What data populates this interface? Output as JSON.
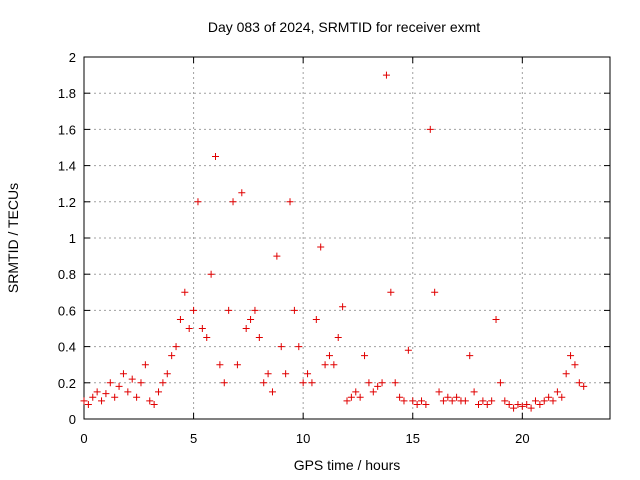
{
  "chart_data": {
    "type": "scatter",
    "title": "Day 083 of 2024, SRMTID for receiver exmt",
    "xlabel": "GPS time / hours",
    "ylabel": "SRMTID / TECUs",
    "xlim": [
      0,
      24
    ],
    "ylim": [
      0,
      2
    ],
    "xticks": [
      0,
      5,
      10,
      15,
      20
    ],
    "xtick_labels": [
      "0",
      "5",
      "10",
      "15",
      "20"
    ],
    "yticks": [
      0,
      0.2,
      0.4,
      0.6,
      0.8,
      1,
      1.2,
      1.4,
      1.6,
      1.8,
      2
    ],
    "ytick_labels": [
      "0",
      "0.2",
      "0.4",
      "0.6",
      "0.8",
      "1",
      "1.2",
      "1.4",
      "1.6",
      "1.8",
      "2"
    ],
    "grid": true,
    "marker": "+",
    "marker_color": "#e00000",
    "series": [
      {
        "name": "SRMTID",
        "x": [
          0.0,
          0.2,
          0.4,
          0.6,
          0.8,
          1.0,
          1.2,
          1.4,
          1.6,
          1.8,
          2.0,
          2.2,
          2.4,
          2.6,
          2.8,
          3.0,
          3.2,
          3.4,
          3.6,
          3.8,
          4.0,
          4.2,
          4.4,
          4.6,
          4.8,
          5.0,
          5.2,
          5.4,
          5.6,
          5.8,
          6.0,
          6.2,
          6.4,
          6.6,
          6.8,
          7.0,
          7.2,
          7.4,
          7.6,
          7.8,
          8.0,
          8.2,
          8.4,
          8.6,
          8.8,
          9.0,
          9.2,
          9.4,
          9.6,
          9.8,
          10.0,
          10.2,
          10.4,
          10.6,
          10.8,
          11.0,
          11.2,
          11.4,
          11.6,
          11.8,
          12.0,
          12.2,
          12.4,
          12.6,
          12.8,
          13.0,
          13.2,
          13.4,
          13.6,
          13.8,
          14.0,
          14.2,
          14.4,
          14.6,
          14.8,
          15.0,
          15.2,
          15.4,
          15.6,
          15.8,
          16.0,
          16.2,
          16.4,
          16.6,
          16.8,
          17.0,
          17.2,
          17.4,
          17.6,
          17.8,
          18.0,
          18.2,
          18.4,
          18.6,
          18.8,
          19.0,
          19.2,
          19.4,
          19.6,
          19.8,
          20.0,
          20.2,
          20.4,
          20.6,
          20.8,
          21.0,
          21.2,
          21.4,
          21.6,
          21.8,
          22.0,
          22.2,
          22.4,
          22.6,
          22.8
        ],
        "y": [
          0.1,
          0.08,
          0.12,
          0.15,
          0.1,
          0.14,
          0.2,
          0.12,
          0.18,
          0.25,
          0.15,
          0.22,
          0.12,
          0.2,
          0.3,
          0.1,
          0.08,
          0.15,
          0.2,
          0.25,
          0.35,
          0.4,
          0.55,
          0.7,
          0.5,
          0.6,
          1.2,
          0.5,
          0.45,
          0.8,
          1.45,
          0.3,
          0.2,
          0.6,
          1.2,
          0.3,
          1.25,
          0.5,
          0.55,
          0.6,
          0.45,
          0.2,
          0.25,
          0.15,
          0.9,
          0.4,
          0.25,
          1.2,
          0.6,
          0.4,
          0.2,
          0.25,
          0.2,
          0.55,
          0.95,
          0.3,
          0.35,
          0.3,
          0.45,
          0.62,
          0.1,
          0.12,
          0.15,
          0.12,
          0.35,
          0.2,
          0.15,
          0.18,
          0.2,
          1.9,
          0.7,
          0.2,
          0.12,
          0.1,
          0.38,
          0.1,
          0.08,
          0.1,
          0.08,
          1.6,
          0.7,
          0.15,
          0.1,
          0.12,
          0.1,
          0.12,
          0.1,
          0.1,
          0.35,
          0.15,
          0.08,
          0.1,
          0.08,
          0.1,
          0.55,
          0.2,
          0.1,
          0.08,
          0.06,
          0.08,
          0.07,
          0.08,
          0.06,
          0.1,
          0.08,
          0.1,
          0.12,
          0.1,
          0.15,
          0.12,
          0.25,
          0.35,
          0.3,
          0.2,
          0.18
        ]
      }
    ]
  }
}
